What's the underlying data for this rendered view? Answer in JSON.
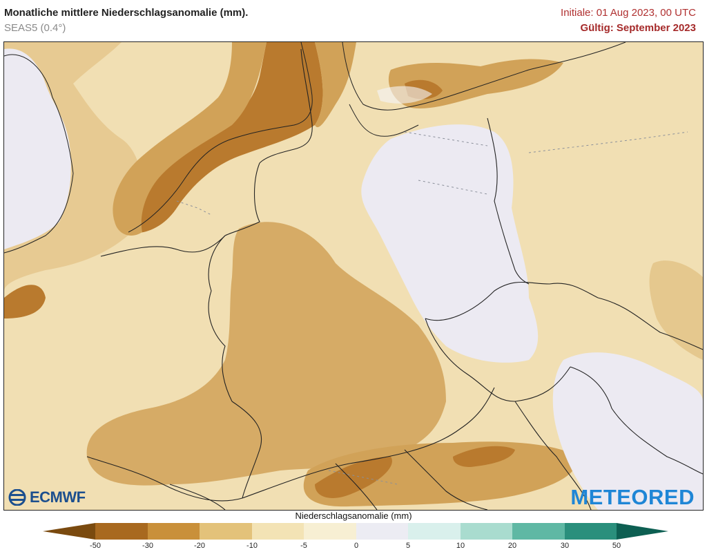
{
  "header": {
    "title": "Monatliche mittlere Niederschlagsanomalie (mm).",
    "subtitle": "SEAS5 (0.4°)",
    "initial": "Initiale: 01 Aug 2023, 00 UTC",
    "valid": "Gültig: September 2023"
  },
  "logos": {
    "left": "ECMWF",
    "right": "METEORED"
  },
  "legend": {
    "title": "Niederschlagsanomalie (mm)",
    "ticks": [
      "-50",
      "-30",
      "-20",
      "-10",
      "-5",
      "0",
      "5",
      "10",
      "20",
      "30",
      "50"
    ],
    "colors": [
      "#7a4a0f",
      "#a8691f",
      "#c9903a",
      "#e3c27a",
      "#f3e3b5",
      "#f7efd3",
      "#ececf3",
      "#d9f0ec",
      "#a9dccf",
      "#5fb8a4",
      "#2a8f7c",
      "#0d5f52"
    ]
  },
  "map_colors": {
    "very_dry": "#b97a2e",
    "dry": "#d1a258",
    "moderate": "#e5c88e",
    "light": "#f1dfb3",
    "neutral": "#eceaf2",
    "water": "#f5f5f8"
  }
}
